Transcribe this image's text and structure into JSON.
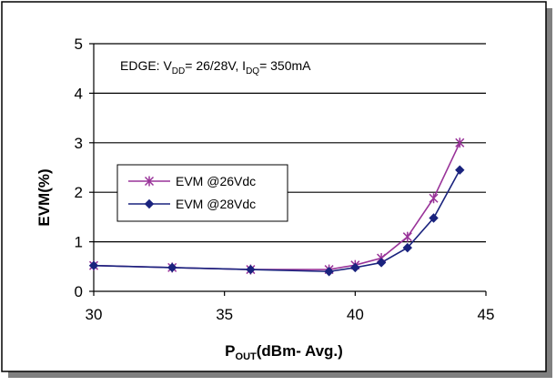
{
  "colors": {
    "series_26": "#993399",
    "series_28": "#1a237e",
    "frame_shadow": "#808080"
  },
  "chart_data": {
    "type": "line",
    "annotation": {
      "prefix": "EDGE: V",
      "vdd_sub": "DD",
      "mid1": "= 26/28V, I",
      "idq_sub": "DQ",
      "mid2": "= 350mA"
    },
    "xlabel": {
      "main": "P",
      "sub": "OUT",
      "rest": "(dBm- Avg.)"
    },
    "ylabel": "EVM(%)",
    "xlim": [
      30,
      45
    ],
    "ylim": [
      0,
      5
    ],
    "xticks": [
      "30",
      "35",
      "40",
      "45"
    ],
    "yticks": [
      "0",
      "1",
      "2",
      "3",
      "4",
      "5"
    ],
    "grid": "horizontal",
    "legend_position": "center-left",
    "series": [
      {
        "name": "EVM @26Vdc",
        "marker": "star",
        "x": [
          30,
          33,
          36,
          39,
          40,
          41,
          42,
          43,
          44
        ],
        "y": [
          0.52,
          0.48,
          0.44,
          0.44,
          0.53,
          0.67,
          1.1,
          1.88,
          3.0
        ]
      },
      {
        "name": "EVM @28Vdc",
        "marker": "diamond",
        "x": [
          30,
          33,
          36,
          39,
          40,
          41,
          42,
          43,
          44
        ],
        "y": [
          0.52,
          0.48,
          0.44,
          0.4,
          0.48,
          0.58,
          0.88,
          1.48,
          2.45
        ]
      }
    ]
  }
}
